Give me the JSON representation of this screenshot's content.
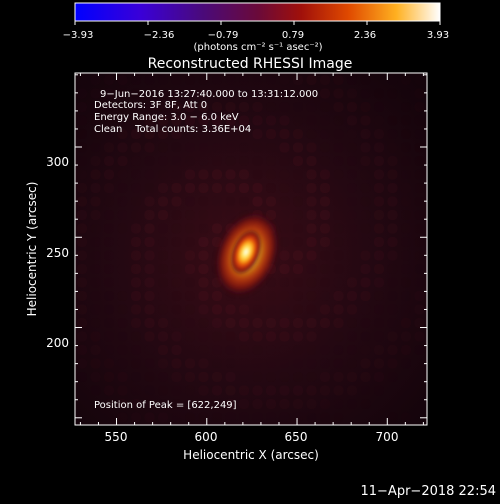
{
  "colorbar": {
    "ticks": [
      "−3.93",
      "−2.36",
      "−0.79",
      "0.79",
      "2.36",
      "3.93"
    ],
    "units": "(photons cm⁻² s⁻¹ asec⁻²)"
  },
  "plot": {
    "title": "Reconstructed RHESSI Image",
    "info_time": "9−Jun−2016 13:27:40.000 to 13:31:12.000",
    "info_detectors": "Detectors: 3F 8F, Att 0",
    "info_energy": "Energy Range: 3.0 − 6.0 keV",
    "info_clean": "Clean    Total counts: 3.36E+04",
    "peak_label": "Position of Peak = [622,249]",
    "xlabel": "Heliocentric X (arcsec)",
    "ylabel": "Heliocentric Y (arcsec)",
    "xlim": [
      527,
      722
    ],
    "ylim": [
      146,
      341
    ],
    "x_ticks": [
      "550",
      "600",
      "650",
      "700"
    ],
    "y_ticks": [
      "200",
      "250",
      "300"
    ],
    "peak": [
      622,
      249
    ]
  },
  "footer": {
    "timestamp": "11−Apr−2018 22:54"
  },
  "colors": {
    "background": "#000000",
    "colormap": [
      "#0000ff",
      "#4a00b0",
      "#5a0a6e",
      "#9a0b3a",
      "#c81e10",
      "#ff7a00",
      "#ffd24a",
      "#ffffff"
    ]
  }
}
